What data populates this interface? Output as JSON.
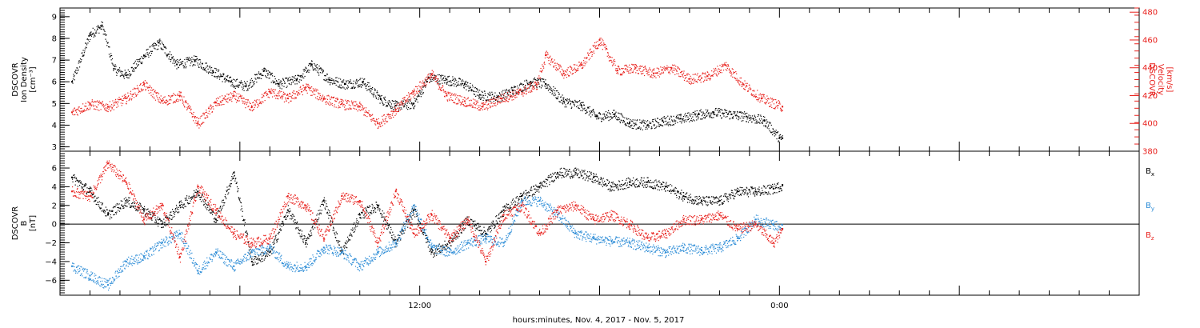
{
  "xlabel": "hours:minutes, Nov.  4, 2017 - Nov.  5, 2017",
  "x_ticks": {
    "labels": [
      "12:00",
      "0:00"
    ],
    "label_hours": [
      12,
      24
    ],
    "range_hours": [
      0,
      36
    ]
  },
  "colors": {
    "black": "#000000",
    "red": "#e8201c",
    "blue": "#2a8bd6"
  },
  "chart_data": [
    {
      "type": "scatter",
      "panel": "top",
      "ylabel_lines": [
        "DSCOVR",
        "Ion Density",
        "[cm⁻³]"
      ],
      "ylim": [
        2.8,
        9.4
      ],
      "y_ticks": [
        3,
        4,
        5,
        6,
        7,
        8,
        9
      ],
      "y2label_lines": [
        "DSCOVR",
        "Velocity",
        "[km/s]"
      ],
      "y2lim": [
        380,
        483
      ],
      "y2_ticks": [
        380,
        400,
        420,
        440,
        460,
        480
      ],
      "grid": false,
      "series": [
        {
          "axis": "left",
          "color": "black",
          "x": [
            0.4,
            1.0,
            1.4,
            1.8,
            2.2,
            2.8,
            3.3,
            3.9,
            4.5,
            5.1,
            5.7,
            6.2,
            6.8,
            7.3,
            7.9,
            8.4,
            9.0,
            9.5,
            10.1,
            10.7,
            11.2,
            11.8,
            12.3,
            12.9,
            13.5,
            14.0,
            14.6,
            15.1,
            15.7,
            16.2,
            16.8,
            17.4,
            17.9,
            18.5,
            19.0,
            19.6,
            20.1,
            20.7,
            21.3,
            21.8,
            22.4,
            22.9,
            23.5,
            24.0,
            24.1
          ],
          "y": [
            6.0,
            8.2,
            8.6,
            6.6,
            6.3,
            7.2,
            7.8,
            6.8,
            7.0,
            6.5,
            6.0,
            5.8,
            6.5,
            5.9,
            6.1,
            6.8,
            6.1,
            5.9,
            6.0,
            5.2,
            4.9,
            5.0,
            6.2,
            6.1,
            5.9,
            5.4,
            5.3,
            5.6,
            6.0,
            5.9,
            5.1,
            4.9,
            4.4,
            4.5,
            4.1,
            4.0,
            4.2,
            4.3,
            4.5,
            4.6,
            4.5,
            4.4,
            4.2,
            3.4,
            3.4
          ]
        },
        {
          "axis": "right",
          "color": "red",
          "x": [
            0.4,
            1.0,
            1.6,
            2.2,
            2.8,
            3.4,
            4.0,
            4.6,
            5.2,
            5.8,
            6.4,
            7.0,
            7.6,
            8.2,
            8.8,
            9.4,
            10.0,
            10.6,
            11.2,
            11.8,
            12.4,
            12.9,
            13.5,
            14.1,
            14.7,
            15.3,
            15.9,
            16.2,
            16.8,
            17.4,
            18.0,
            18.6,
            19.2,
            19.8,
            20.4,
            21.0,
            21.6,
            22.2,
            22.8,
            23.4,
            24.1
          ],
          "y": [
            408,
            414,
            412,
            418,
            428,
            416,
            420,
            400,
            415,
            420,
            412,
            423,
            418,
            426,
            418,
            414,
            412,
            400,
            410,
            423,
            435,
            420,
            416,
            412,
            418,
            422,
            428,
            449,
            436,
            442,
            460,
            438,
            440,
            436,
            440,
            432,
            434,
            442,
            428,
            418,
            412
          ]
        }
      ]
    },
    {
      "type": "scatter",
      "panel": "bottom",
      "ylabel_lines": [
        "DSCOVR",
        "B",
        "[nT]"
      ],
      "ylim": [
        -7.6,
        7.8
      ],
      "y_ticks": [
        -6,
        -4,
        -2,
        0,
        2,
        4,
        6
      ],
      "reference_line_y": 0,
      "grid": false,
      "legend_position": "right",
      "series": [
        {
          "name": "B",
          "subscript": "x",
          "color": "black",
          "x": [
            0.4,
            1.0,
            1.6,
            2.2,
            2.8,
            3.4,
            4.0,
            4.6,
            5.2,
            5.8,
            6.4,
            7.0,
            7.6,
            8.2,
            8.8,
            9.4,
            10.0,
            10.6,
            11.2,
            11.8,
            12.4,
            13.0,
            13.6,
            14.2,
            14.8,
            15.4,
            16.0,
            16.6,
            17.2,
            17.8,
            18.4,
            19.0,
            19.6,
            20.2,
            20.8,
            21.4,
            22.0,
            22.6,
            23.2,
            23.8,
            24.1
          ],
          "y": [
            5.0,
            3.5,
            1.0,
            2.5,
            1.5,
            0.0,
            2.0,
            3.5,
            0.5,
            5.5,
            -4.0,
            -3.0,
            1.5,
            -2.0,
            2.5,
            -3.0,
            1.0,
            2.0,
            -2.0,
            1.5,
            -3.0,
            -2.0,
            0.5,
            -1.0,
            1.5,
            3.0,
            4.0,
            5.5,
            5.5,
            5.0,
            4.0,
            4.5,
            4.5,
            4.0,
            3.0,
            2.5,
            2.5,
            3.5,
            3.5,
            3.8,
            4.2
          ]
        },
        {
          "name": "B",
          "subscript": "y",
          "color": "blue",
          "x": [
            0.4,
            1.0,
            1.6,
            2.2,
            2.8,
            3.4,
            4.0,
            4.6,
            5.2,
            5.8,
            6.4,
            7.0,
            7.6,
            8.2,
            8.8,
            9.4,
            10.0,
            10.6,
            11.2,
            11.8,
            12.4,
            13.0,
            13.6,
            14.2,
            14.8,
            15.4,
            16.0,
            16.6,
            17.2,
            17.8,
            18.4,
            19.0,
            19.6,
            20.2,
            20.8,
            21.4,
            22.0,
            22.6,
            23.2,
            23.8,
            24.1
          ],
          "y": [
            -4.5,
            -5.5,
            -6.5,
            -4.0,
            -3.5,
            -2.0,
            -1.0,
            -5.0,
            -3.0,
            -4.5,
            -3.0,
            -2.5,
            -4.5,
            -4.5,
            -2.5,
            -3.0,
            -4.5,
            -3.0,
            -2.0,
            2.0,
            -2.5,
            -3.0,
            -2.0,
            -1.5,
            -2.0,
            2.5,
            2.5,
            1.0,
            -1.0,
            -1.5,
            -1.8,
            -2.0,
            -2.5,
            -3.0,
            -2.5,
            -2.8,
            -2.5,
            -1.5,
            0.5,
            0.0,
            -0.5
          ]
        },
        {
          "name": "B",
          "subscript": "z",
          "color": "red",
          "x": [
            0.4,
            1.0,
            1.6,
            2.2,
            2.8,
            3.4,
            4.0,
            4.6,
            5.2,
            5.8,
            6.4,
            7.0,
            7.6,
            8.2,
            8.8,
            9.4,
            10.0,
            10.6,
            11.2,
            11.8,
            12.4,
            13.0,
            13.6,
            14.2,
            14.8,
            15.4,
            16.0,
            16.6,
            17.2,
            17.8,
            18.4,
            19.0,
            19.6,
            20.2,
            20.8,
            21.4,
            22.0,
            22.6,
            23.2,
            23.8,
            24.1
          ],
          "y": [
            3.5,
            3.0,
            6.5,
            4.5,
            0.5,
            2.0,
            -3.5,
            4.0,
            1.5,
            -1.0,
            -2.0,
            -1.5,
            3.0,
            2.0,
            -1.5,
            3.0,
            2.5,
            -2.0,
            3.5,
            -1.0,
            1.0,
            -1.5,
            0.5,
            -4.0,
            1.0,
            2.0,
            -1.0,
            1.5,
            2.0,
            0.5,
            1.0,
            0.0,
            -1.5,
            -1.0,
            0.5,
            0.5,
            1.0,
            -0.5,
            0.0,
            -2.0,
            -0.5
          ]
        }
      ]
    }
  ]
}
